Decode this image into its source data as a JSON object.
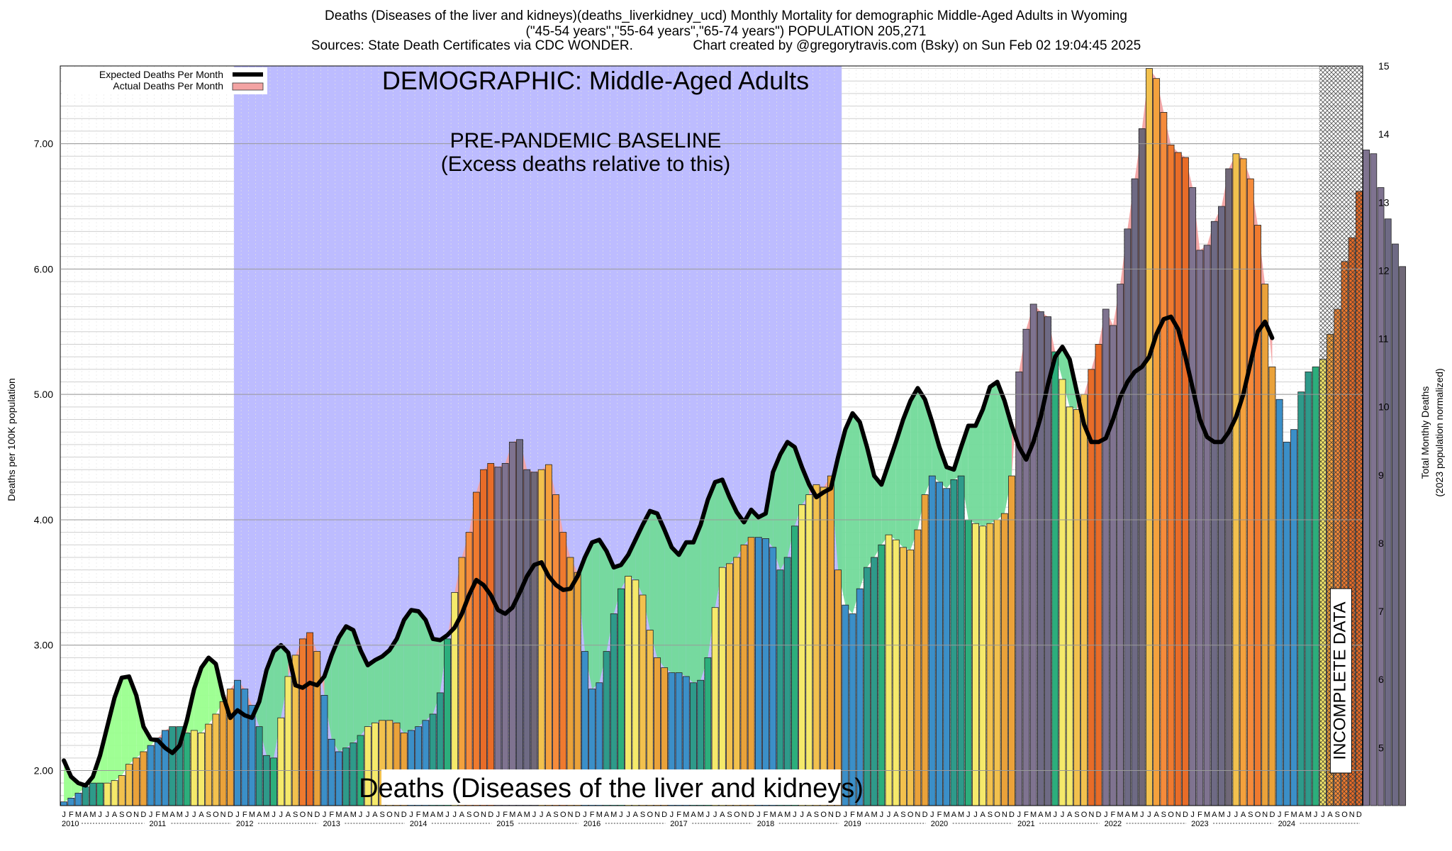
{
  "header": {
    "line1": "Deaths (Diseases of the liver and kidneys)(deaths_liverkidney_ucd) Monthly Mortality for demographic Middle-Aged Adults in Wyoming",
    "line2": "(\"45-54 years\",\"55-64 years\",\"65-74 years\") POPULATION 205,271",
    "line3": "Sources: State Death Certificates via CDC WONDER.                Chart created by @gregorytravis.com (Bsky) on Sun Feb 02 19:04:45 2025"
  },
  "chart_data": {
    "type": "bar",
    "title": "Deaths (Diseases of the liver and kidneys)(deaths_liverkidney_ucd) Monthly Mortality for demographic Middle-Aged Adults in Wyoming",
    "ylabel": "Deaths per 100K population",
    "ylabel_right": "Total Monthly Deaths",
    "ylabel_right2": "(2023 population normalized)",
    "ylim": [
      1.72,
      7.62
    ],
    "y2lim": [
      4.15,
      15.0
    ],
    "yticks": [
      "2.00",
      "3.00",
      "4.00",
      "5.00",
      "6.00",
      "7.00"
    ],
    "y2ticks": [
      "5",
      "6",
      "7",
      "8",
      "9",
      "10",
      "11",
      "12",
      "13",
      "14",
      "15"
    ],
    "grid": true,
    "legend_position": "top-left",
    "legend": [
      "Expected Deaths Per Month",
      "Actual Deaths Per Month"
    ],
    "month_letters": [
      "J",
      "F",
      "M",
      "A",
      "M",
      "J",
      "J",
      "A",
      "S",
      "O",
      "N",
      "D"
    ],
    "years": [
      "2010",
      "2011",
      "2012",
      "2013",
      "2014",
      "2015",
      "2016",
      "2017",
      "2018",
      "2019",
      "2020",
      "2021",
      "2022",
      "2023",
      "2024"
    ],
    "baseline_label": "DEMOGRAPHIC: Middle-Aged Adults",
    "baseline_note_1": "PRE-PANDEMIC BASELINE",
    "baseline_note_2": "(Excess deaths relative to this)",
    "bottom_caption": "Deaths (Diseases of the liver and kidneys)",
    "incomplete_label": "INCOMPLETE DATA",
    "baseline_range": [
      24,
      107
    ],
    "incomplete_range": [
      174,
      180
    ],
    "series": [
      {
        "name": "Actual Deaths Per Month",
        "values": [
          1.75,
          1.78,
          1.82,
          1.87,
          1.9,
          1.9,
          1.9,
          1.92,
          1.96,
          2.05,
          2.1,
          2.15,
          2.2,
          2.26,
          2.32,
          2.35,
          2.35,
          2.3,
          2.32,
          2.3,
          2.37,
          2.45,
          2.55,
          2.65,
          2.72,
          2.65,
          2.52,
          2.35,
          2.12,
          2.1,
          2.42,
          2.75,
          2.92,
          3.05,
          3.1,
          2.95,
          2.6,
          2.25,
          2.15,
          2.18,
          2.22,
          2.28,
          2.35,
          2.38,
          2.4,
          2.4,
          2.38,
          2.3,
          2.32,
          2.35,
          2.4,
          2.45,
          2.62,
          3.05,
          3.42,
          3.7,
          3.9,
          4.22,
          4.4,
          4.45,
          4.42,
          4.45,
          4.62,
          4.64,
          4.4,
          4.38,
          4.4,
          4.44,
          4.2,
          3.9,
          3.7,
          3.58,
          2.95,
          2.65,
          2.7,
          2.95,
          3.25,
          3.45,
          3.55,
          3.52,
          3.4,
          3.12,
          2.9,
          2.82,
          2.78,
          2.78,
          2.75,
          2.7,
          2.72,
          2.9,
          3.3,
          3.62,
          3.65,
          3.7,
          3.8,
          3.86,
          3.86,
          3.85,
          3.78,
          3.6,
          3.7,
          3.95,
          4.12,
          4.2,
          4.28,
          4.26,
          4.35,
          3.6,
          3.32,
          3.25,
          3.45,
          3.62,
          3.7,
          3.8,
          3.88,
          3.84,
          3.78,
          3.76,
          3.92,
          4.2,
          4.35,
          4.3,
          4.25,
          4.32,
          4.35,
          4.0,
          3.97,
          3.95,
          3.97,
          4.0,
          4.05,
          4.35,
          5.18,
          5.52,
          5.72,
          5.66,
          5.62,
          5.34,
          5.12,
          4.9,
          4.88,
          5.0,
          5.2,
          5.4,
          5.68,
          5.55,
          5.88,
          6.32,
          6.72,
          7.12,
          7.6,
          7.52,
          7.25,
          6.99,
          6.93,
          6.89,
          6.65,
          6.15,
          6.19,
          6.38,
          6.5,
          6.8,
          6.92,
          6.88,
          6.72,
          6.35,
          5.88,
          5.22,
          4.96,
          4.62,
          4.72,
          5.02,
          5.18,
          5.22,
          5.28,
          5.48,
          5.68,
          6.06,
          6.25,
          6.62,
          6.95,
          6.92,
          6.65,
          6.4,
          6.2,
          6.02
        ]
      },
      {
        "name": "Expected Deaths Per Month",
        "values": [
          2.08,
          1.95,
          1.9,
          1.88,
          1.95,
          2.12,
          2.35,
          2.58,
          2.74,
          2.75,
          2.6,
          2.35,
          2.25,
          2.24,
          2.18,
          2.14,
          2.2,
          2.4,
          2.65,
          2.82,
          2.9,
          2.85,
          2.6,
          2.42,
          2.48,
          2.44,
          2.42,
          2.55,
          2.8,
          2.95,
          3.0,
          2.94,
          2.68,
          2.66,
          2.7,
          2.68,
          2.75,
          2.92,
          3.06,
          3.15,
          3.12,
          2.96,
          2.84,
          2.88,
          2.91,
          2.96,
          3.05,
          3.2,
          3.28,
          3.27,
          3.2,
          3.05,
          3.04,
          3.08,
          3.14,
          3.25,
          3.4,
          3.52,
          3.48,
          3.4,
          3.28,
          3.25,
          3.3,
          3.42,
          3.55,
          3.64,
          3.66,
          3.55,
          3.48,
          3.44,
          3.45,
          3.55,
          3.7,
          3.82,
          3.84,
          3.75,
          3.62,
          3.64,
          3.72,
          3.84,
          3.96,
          4.07,
          4.05,
          3.92,
          3.78,
          3.72,
          3.82,
          3.82,
          3.96,
          4.16,
          4.3,
          4.32,
          4.18,
          4.06,
          3.98,
          4.08,
          4.02,
          4.05,
          4.38,
          4.52,
          4.62,
          4.58,
          4.42,
          4.28,
          4.18,
          4.22,
          4.25,
          4.5,
          4.72,
          4.85,
          4.78,
          4.58,
          4.35,
          4.28,
          4.45,
          4.62,
          4.8,
          4.95,
          5.05,
          4.96,
          4.78,
          4.58,
          4.42,
          4.4,
          4.58,
          4.75,
          4.75,
          4.88,
          5.06,
          5.1,
          4.95,
          4.75,
          4.58,
          4.48,
          4.62,
          4.82,
          5.08,
          5.3,
          5.38,
          5.28,
          5.02,
          4.76,
          4.62,
          4.62,
          4.65,
          4.8,
          4.98,
          5.1,
          5.18,
          5.22,
          5.3,
          5.48,
          5.6,
          5.62,
          5.52,
          5.3,
          5.05,
          4.8,
          4.66,
          4.62,
          4.62,
          4.7,
          4.82,
          5.0,
          5.25,
          5.5,
          5.58,
          5.45
        ]
      }
    ]
  }
}
